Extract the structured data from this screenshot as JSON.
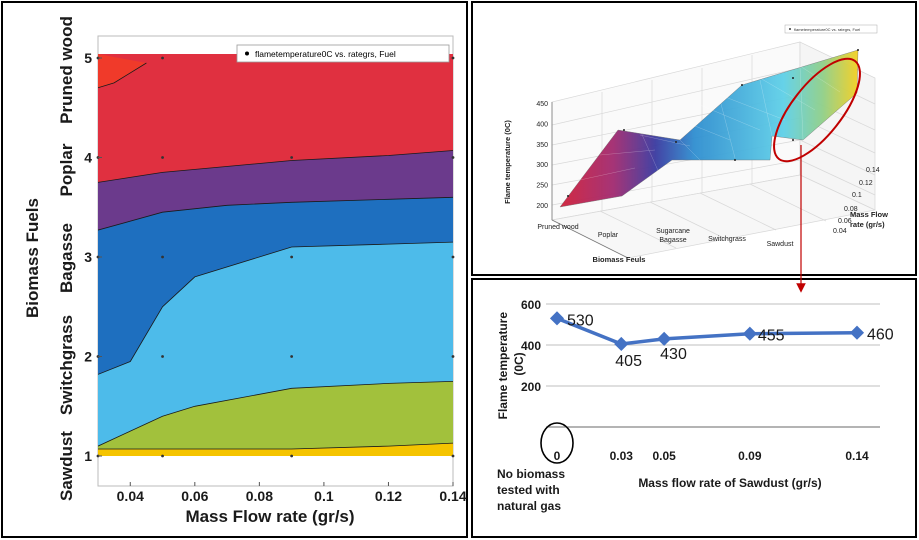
{
  "panels": {
    "left": {
      "legend": "flametemperature0C vs. rategrs, Fuel",
      "ylabel": "Biomass Fuels",
      "xlabel": "Mass Flow rate (gr/s)",
      "y_ticks": [
        "1",
        "2",
        "3",
        "4",
        "5"
      ],
      "x_ticks": [
        "0.04",
        "0.06",
        "0.08",
        "0.1",
        "0.12",
        "0.14"
      ],
      "fuel_labels": [
        "Sawdust",
        "Switchgrass",
        "Bagasse",
        "Poplar",
        "Pruned wood"
      ]
    },
    "top_right": {
      "legend": "flametemperature0C vs. rategrs, Fuel",
      "zlabel": "Flame temperature (0C)",
      "z_ticks": [
        "200",
        "250",
        "300",
        "350",
        "400",
        "450"
      ],
      "xlabel": "Biomass Feuls",
      "fuel_ticks": [
        "Pruned wood",
        "Poplar",
        "Sugarcane\nBagasse",
        "Switchgrass",
        "Sawdust"
      ],
      "ylabel": "Mass Flow\nrate (gr/s)",
      "rate_ticks": [
        "0.04",
        "0.06",
        "0.08",
        "0.1",
        "0.12",
        "0.14"
      ]
    },
    "bottom_right": {
      "ylabel": "Flame temperature\n(0C)",
      "xlabel": "Mass flow rate of Sawdust (gr/s)",
      "y_ticks": [
        "200",
        "400",
        "600"
      ],
      "x_ticks": [
        "0",
        "0.03",
        "0.05",
        "0.09",
        "0.14"
      ],
      "note": "No biomass\ntested with\nnatural gas"
    }
  },
  "chart_data": [
    {
      "type": "heatmap",
      "title": "",
      "xlabel": "Mass Flow rate (gr/s)",
      "ylabel": "Biomass Fuels",
      "legend": "flametemperature0C vs. rategrs, Fuel",
      "xlim": [
        0.03,
        0.14
      ],
      "ylim": [
        1,
        5
      ],
      "y_categories": [
        "Sawdust",
        "Switchgrass",
        "Bagasse",
        "Poplar",
        "Pruned wood"
      ],
      "bands_colors": [
        "#f5c400",
        "#a2c13c",
        "#4dbbea",
        "#1e6fbf",
        "#6b3a8c",
        "#e03040",
        "#f03a2a"
      ],
      "boundaries": [
        [
          [
            0.03,
            1.07
          ],
          [
            0.05,
            1.07
          ],
          [
            0.09,
            1.07
          ],
          [
            0.12,
            1.1
          ],
          [
            0.14,
            1.13
          ]
        ],
        [
          [
            0.03,
            1.1
          ],
          [
            0.04,
            1.25
          ],
          [
            0.05,
            1.4
          ],
          [
            0.06,
            1.5
          ],
          [
            0.09,
            1.68
          ],
          [
            0.12,
            1.73
          ],
          [
            0.14,
            1.75
          ]
        ],
        [
          [
            0.03,
            1.82
          ],
          [
            0.04,
            1.95
          ],
          [
            0.05,
            2.5
          ],
          [
            0.06,
            2.8
          ],
          [
            0.09,
            3.1
          ],
          [
            0.12,
            3.13
          ],
          [
            0.14,
            3.15
          ]
        ],
        [
          [
            0.03,
            3.27
          ],
          [
            0.05,
            3.45
          ],
          [
            0.07,
            3.52
          ],
          [
            0.09,
            3.55
          ],
          [
            0.12,
            3.58
          ],
          [
            0.14,
            3.6
          ]
        ],
        [
          [
            0.03,
            3.75
          ],
          [
            0.05,
            3.85
          ],
          [
            0.09,
            3.97
          ],
          [
            0.12,
            4.02
          ],
          [
            0.14,
            4.07
          ]
        ],
        [
          [
            0.03,
            4.7
          ],
          [
            0.035,
            4.75
          ],
          [
            0.045,
            4.95
          ]
        ]
      ]
    },
    {
      "type": "surface",
      "title": "",
      "xlabel": "Biomass Feuls",
      "ylabel": "Mass Flow rate (gr/s)",
      "zlabel": "Flame temperature (0C)",
      "legend": "flametemperature0C vs. rategrs, Fuel",
      "x_categories": [
        "Pruned wood",
        "Poplar",
        "Sugarcane Bagasse",
        "Switchgrass",
        "Sawdust"
      ],
      "ylim": [
        0.03,
        0.14
      ],
      "zlim": [
        200,
        450
      ]
    },
    {
      "type": "line",
      "title": "",
      "xlabel": "Mass flow rate of Sawdust (gr/s)",
      "ylabel": "Flame temperature (0C)",
      "x": [
        0,
        0.03,
        0.05,
        0.09,
        0.14
      ],
      "values": [
        530,
        405,
        430,
        455,
        460
      ],
      "data_labels": [
        "530",
        "405",
        "430",
        "455",
        "460"
      ],
      "ylim": [
        0,
        600
      ],
      "color": "#4472c4"
    }
  ],
  "colors": {
    "arrow": "#c00000",
    "ellipse": "#c00000",
    "border": "#000000"
  }
}
